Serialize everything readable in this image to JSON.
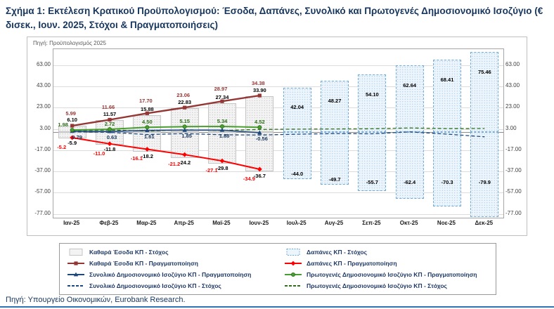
{
  "page": {
    "title": "Σχήμα 1: Εκτέλεση Κρατικού Προϋπολογισμού: Έσοδα, Δαπάνες, Συνολικό και Πρωτογενές Δημοσιονομικό Ισοζύγιο (€ δισεκ., Ιουν. 2025, Στόχοι & Πραγματοποιήσεις)",
    "footer_source": "Πηγή: Υπουργείο Οικονομικών, Eurobank Research."
  },
  "colors": {
    "title_navy": "#17365d",
    "maroon": "#943634",
    "red": "#ff0000",
    "navy_line": "#1f497d",
    "green": "#4a9e2f",
    "green_dark": "#2e6f1a",
    "bar_gray_bg": "#f3f3f3",
    "bar_gray_border": "#c4c4c4",
    "bar_blue_bg": "#edf5fc",
    "bar_blue_border": "#6fa8dc",
    "grid": "#dcdcdc",
    "rule_blue": "#2e74b5"
  },
  "chart_data": {
    "type": "bar",
    "subtype": "combo bar + line, cumulative monthly state budget execution",
    "source_note": "Πηγή: Προϋπολογισμός 2025",
    "categories": [
      "Ιαν-25",
      "Φεβ-25",
      "Μαρ-25",
      "Απρ-25",
      "Μαϊ-25",
      "Ιουν-25",
      "Ιουλ-25",
      "Αυγ-25",
      "Σεπ-25",
      "Οκτ-25",
      "Νοε-25",
      "Δεκ-25"
    ],
    "y_ticks": [
      "63.00",
      "43.00",
      "23.00",
      "3.00",
      "-17.00",
      "-37.00",
      "-57.00",
      "-77.00"
    ],
    "ylim": [
      -80.5,
      78
    ],
    "grid": "horizontal",
    "legend_position": "bottom",
    "series": [
      {
        "id": "rev_target",
        "name": "Καθαρά Έσοδα ΚΠ - Στόχος",
        "type": "bar",
        "values": [
          6.1,
          11.57,
          15.88,
          22.83,
          27.34,
          33.9,
          42.04,
          48.27,
          54.1,
          62.64,
          68.41,
          75.46
        ],
        "labels": [
          "6.10",
          "11.57",
          "15.88",
          "22.83",
          "27.34",
          "33.90",
          "42.04",
          "48.27",
          "54.10",
          "62.64",
          "68.41",
          "75.46"
        ]
      },
      {
        "id": "exp_target",
        "name": "Δαπάνες ΚΠ - Στόχος",
        "type": "bar",
        "values": [
          -5.9,
          -11.8,
          -18.2,
          -24.2,
          -29.8,
          -36.7,
          -44.0,
          -49.7,
          -55.7,
          -62.4,
          -70.3,
          -79.9
        ],
        "labels": [
          "-5.9",
          "-11.8",
          "-18.2",
          "-24.2",
          "-29.8",
          "-36.7",
          "-44.0",
          "-49.7",
          "-55.7",
          "-62.4",
          "-70.3",
          "-79.9"
        ]
      },
      {
        "id": "rev_real",
        "name": "Καθαρά Έσοδα ΚΠ - Πραγματοποίηση",
        "type": "line",
        "values": [
          5.99,
          11.66,
          17.7,
          23.06,
          28.97,
          34.38
        ],
        "labels": [
          "5.99",
          "11.66",
          "17.70",
          "23.06",
          "28.97",
          "34.38"
        ]
      },
      {
        "id": "exp_real",
        "name": "Δαπάνες ΚΠ - Πραγματοποίηση",
        "type": "line",
        "values": [
          -5.2,
          -11.0,
          -16.1,
          -21.2,
          -27.1,
          -34.9
        ],
        "labels": [
          "-5.2",
          "-11.0",
          "-16.1",
          "-21.2",
          "-27.1",
          "-34.9"
        ]
      },
      {
        "id": "bal_real",
        "name": "Συνολικό Δημοσιονομικό Ισοζύγιο ΚΠ - Πραγματοποίηση",
        "type": "line",
        "values": [
          0.79,
          0.63,
          1.61,
          1.85,
          1.88,
          -0.56
        ],
        "labels": [
          "0.79",
          "0.63",
          "1.61",
          "1.85",
          "1.88",
          "-0.56"
        ]
      },
      {
        "id": "prim_real",
        "name": "Πρωτογενές Δημοσιονομικό Ισοζύγιο ΚΠ - Πραγματοποίηση",
        "type": "line",
        "values": [
          1.98,
          2.72,
          4.5,
          5.15,
          5.34,
          4.52
        ],
        "labels": [
          "1.98",
          "2.72",
          "4.50",
          "5.15",
          "5.34",
          "4.52"
        ]
      },
      {
        "id": "bal_target",
        "name": "Συνολικό Δημοσιονομικό Ισοζύγιο ΚΠ - Στόχος",
        "type": "line-dashed",
        "estimated": true,
        "values": [
          0.2,
          -0.2,
          -2.3,
          -1.4,
          -2.5,
          -2.8,
          -2.0,
          -1.4,
          -1.6,
          0.2,
          -1.9,
          -4.4
        ]
      },
      {
        "id": "prim_target",
        "name": "Πρωτογενές Δημοσιονομικό Ισοζύγιο ΚΠ - Στόχος",
        "type": "line-dashed",
        "estimated": true,
        "values": [
          1.4,
          2.0,
          0.9,
          2.2,
          1.5,
          2.5,
          2.8,
          3.0,
          3.1,
          3.9,
          3.3,
          3.4
        ]
      }
    ],
    "legend": [
      {
        "label": "Καθαρά Έσοδα ΚΠ - Στόχος",
        "swatch": "bar-gray"
      },
      {
        "label": "Καθαρά Έσοδα ΚΠ - Πραγματοποίηση",
        "swatch": "maroon-square"
      },
      {
        "label": "Συνολικό Δημοσιονομικό Ισοζύγιο ΚΠ - Πραγματοποίηση",
        "swatch": "navy-triangle"
      },
      {
        "label": "Συνολικό Δημοσιονομικό Ισοζύγιο ΚΠ - Στόχος",
        "swatch": "navy-dashed"
      },
      {
        "label": "Δαπάνες ΚΠ - Στόχος",
        "swatch": "bar-blue"
      },
      {
        "label": "Δαπάνες ΚΠ - Πραγματοποίηση",
        "swatch": "red-diamond"
      },
      {
        "label": "Πρωτογενές Δημοσιονομικό Ισοζύγιο ΚΠ - Πραγματοποίηση",
        "swatch": "green-circle"
      },
      {
        "label": "Πρωτογενές Δημοσιονομικό Ισοζύγιο ΚΠ - Στόχος",
        "swatch": "green-dashed"
      }
    ]
  }
}
